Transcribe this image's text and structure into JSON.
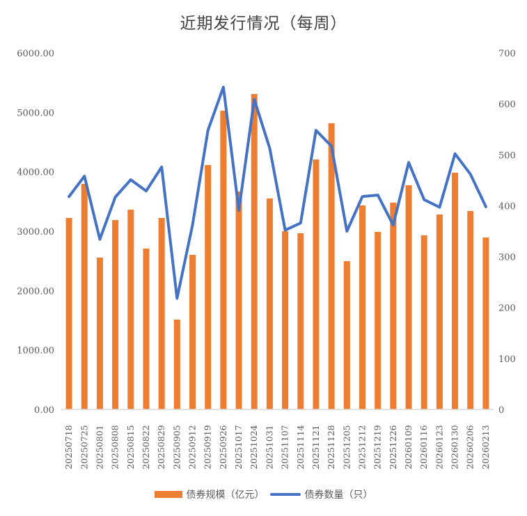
{
  "title": "近期发行情况（每周）",
  "legend": {
    "bar_label": "债券规模（亿元）",
    "line_label": "债券数量（只）"
  },
  "colors": {
    "bar": "#ED7D31",
    "line": "#4472C4",
    "axis": "#D9D9D9",
    "text": "#595959"
  },
  "left_axis": {
    "ticks": [
      "0.00",
      "1000.00",
      "2000.00",
      "3000.00",
      "4000.00",
      "5000.00",
      "6000.00"
    ],
    "min": 0,
    "max": 6000
  },
  "right_axis": {
    "ticks": [
      "0",
      "100",
      "200",
      "300",
      "400",
      "500",
      "600",
      "700"
    ],
    "min": 0,
    "max": 700
  },
  "chart_data": {
    "type": "bar",
    "title": "近期发行情况（每周）",
    "xlabel": "",
    "ylabel": "债券规模（亿元）",
    "y2label": "债券数量（只）",
    "ylim": [
      0,
      6000
    ],
    "y2lim": [
      0,
      700
    ],
    "grid": false,
    "legend_position": "bottom",
    "categories": [
      "20250718",
      "20250725",
      "20250801",
      "20250808",
      "20250815",
      "20250822",
      "20250829",
      "20250905",
      "20250912",
      "20250919",
      "20250926",
      "20251017",
      "20251024",
      "20251031",
      "20251107",
      "20251114",
      "20251121",
      "20251128",
      "20251205",
      "20251212",
      "20251219",
      "20251226",
      "20260109",
      "20260116",
      "20260123",
      "20260130",
      "20260206",
      "20260213"
    ],
    "series": [
      {
        "name": "债券规模（亿元）",
        "type": "bar",
        "axis": "left",
        "values": [
          3223,
          3797,
          2555,
          3188,
          3363,
          2707,
          3223,
          1512,
          2602,
          4113,
          5027,
          3668,
          5309,
          3551,
          3000,
          2965,
          4207,
          4817,
          2496,
          3434,
          2988,
          3481,
          3774,
          2930,
          3281,
          3984,
          3340,
          2894
        ]
      },
      {
        "name": "债券数量（只）",
        "type": "line",
        "axis": "right",
        "values": [
          418,
          458,
          334,
          417,
          451,
          429,
          476,
          218,
          362,
          548,
          633,
          391,
          609,
          513,
          352,
          366,
          548,
          517,
          350,
          418,
          421,
          362,
          485,
          412,
          397,
          502,
          462,
          398
        ]
      }
    ]
  }
}
